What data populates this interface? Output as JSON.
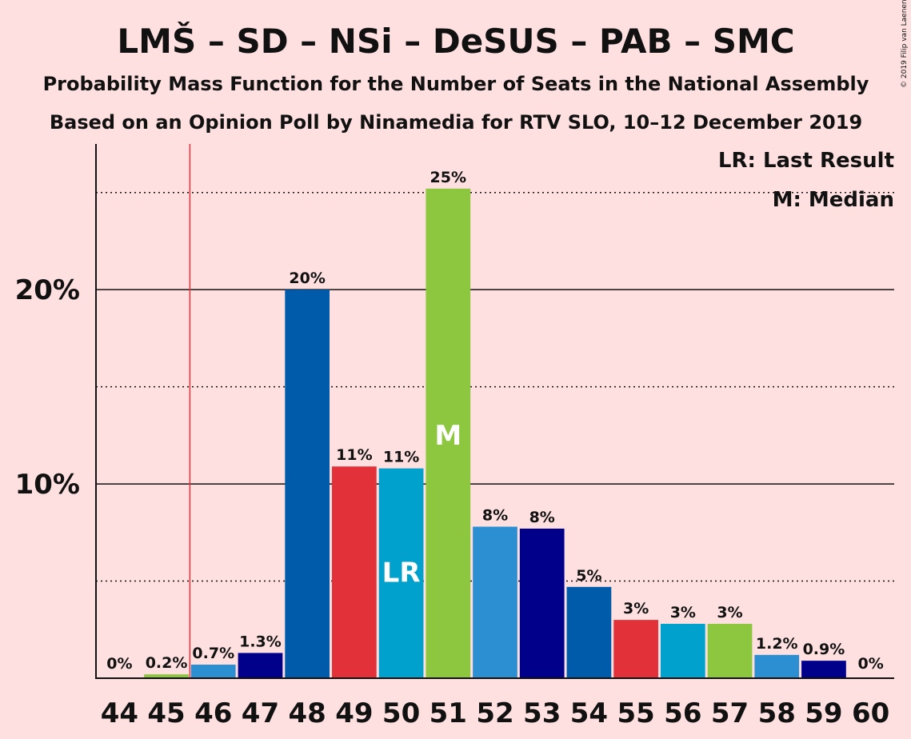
{
  "chart_data": {
    "type": "bar",
    "title": "LMŠ – SD – NSi – DeSUS – PAB – SMC",
    "subtitle1": "Probability Mass Function for the Number of Seats in the National Assembly",
    "subtitle2": "Based on an Opinion Poll by Ninamedia for RTV SLO, 10–12 December 2019",
    "copyright": "© 2019 Filip van Laenen",
    "legend": {
      "lr": "LR: Last Result",
      "m": "M: Median",
      "placement": "top-right"
    },
    "categories": [
      "44",
      "45",
      "46",
      "47",
      "48",
      "49",
      "50",
      "51",
      "52",
      "53",
      "54",
      "55",
      "56",
      "57",
      "58",
      "59",
      "60"
    ],
    "values": [
      0,
      0.2,
      0.7,
      1.3,
      20,
      10.9,
      10.8,
      25.2,
      7.8,
      7.7,
      4.7,
      3.0,
      2.8,
      2.8,
      1.2,
      0.9,
      0
    ],
    "labels": [
      "0%",
      "0.2%",
      "0.7%",
      "1.3%",
      "20%",
      "11%",
      "11%",
      "25%",
      "8%",
      "8%",
      "5%",
      "3%",
      "3%",
      "3%",
      "1.2%",
      "0.9%",
      "0%"
    ],
    "colors": [
      "#8dc63f",
      "#8dc63f",
      "#2b8fd1",
      "#00008b",
      "#005bab",
      "#e3313a",
      "#00a1cc",
      "#8dc63f",
      "#2b8fd1",
      "#00008b",
      "#005bab",
      "#e3313a",
      "#00a1cc",
      "#8dc63f",
      "#2b8fd1",
      "#00008b",
      "#005bab"
    ],
    "ylim": [
      0,
      27.5
    ],
    "yticks": [
      {
        "value": 10,
        "label": "10%"
      },
      {
        "value": 20,
        "label": "20%"
      }
    ],
    "dotted_gridlines": [
      5,
      15,
      25
    ],
    "last_result_line": 45.5,
    "last_result_bar": "50",
    "median_bar": "51",
    "last_result_marker": "LR",
    "median_marker": "M"
  }
}
